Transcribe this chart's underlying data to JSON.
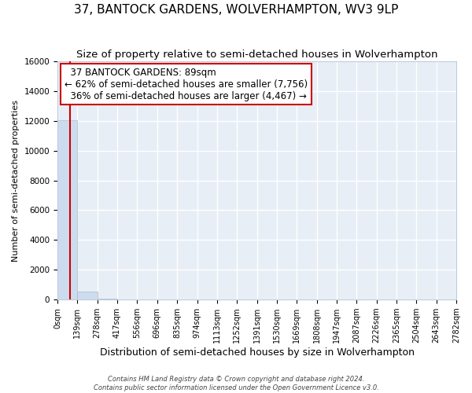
{
  "title": "37, BANTOCK GARDENS, WOLVERHAMPTON, WV3 9LP",
  "subtitle": "Size of property relative to semi-detached houses in Wolverhampton",
  "xlabel": "Distribution of semi-detached houses by size in Wolverhampton",
  "ylabel": "Number of semi-detached properties",
  "property_size": 89,
  "property_label": "37 BANTOCK GARDENS: 89sqm",
  "pct_smaller": 62,
  "count_smaller": 7756,
  "pct_larger": 36,
  "count_larger": 4467,
  "bin_edges": [
    0,
    139,
    278,
    417,
    556,
    696,
    835,
    974,
    1113,
    1252,
    1391,
    1530,
    1669,
    1808,
    1947,
    2087,
    2226,
    2365,
    2504,
    2643,
    2782
  ],
  "bin_labels": [
    "0sqm",
    "139sqm",
    "278sqm",
    "417sqm",
    "556sqm",
    "696sqm",
    "835sqm",
    "974sqm",
    "1113sqm",
    "1252sqm",
    "1391sqm",
    "1530sqm",
    "1669sqm",
    "1808sqm",
    "1947sqm",
    "2087sqm",
    "2226sqm",
    "2365sqm",
    "2504sqm",
    "2643sqm",
    "2782sqm"
  ],
  "bar_values": [
    12050,
    520,
    50,
    20,
    10,
    5,
    3,
    2,
    2,
    2,
    2,
    1,
    1,
    1,
    1,
    1,
    1,
    1,
    1,
    1
  ],
  "bar_color": "#ccdcee",
  "bar_edge_color": "#aabbcc",
  "bg_color": "#e8eef6",
  "grid_color": "#ffffff",
  "property_line_color": "#cc0000",
  "annotation_box_color": "#cc0000",
  "ylim": [
    0,
    16000
  ],
  "yticks": [
    0,
    2000,
    4000,
    6000,
    8000,
    10000,
    12000,
    14000,
    16000
  ],
  "title_fontsize": 11,
  "subtitle_fontsize": 9.5,
  "xlabel_fontsize": 9,
  "ylabel_fontsize": 8,
  "annotation_fontsize": 8.5,
  "tick_fontsize": 7,
  "footer_text": "Contains HM Land Registry data © Crown copyright and database right 2024.\nContains public sector information licensed under the Open Government Licence v3.0."
}
